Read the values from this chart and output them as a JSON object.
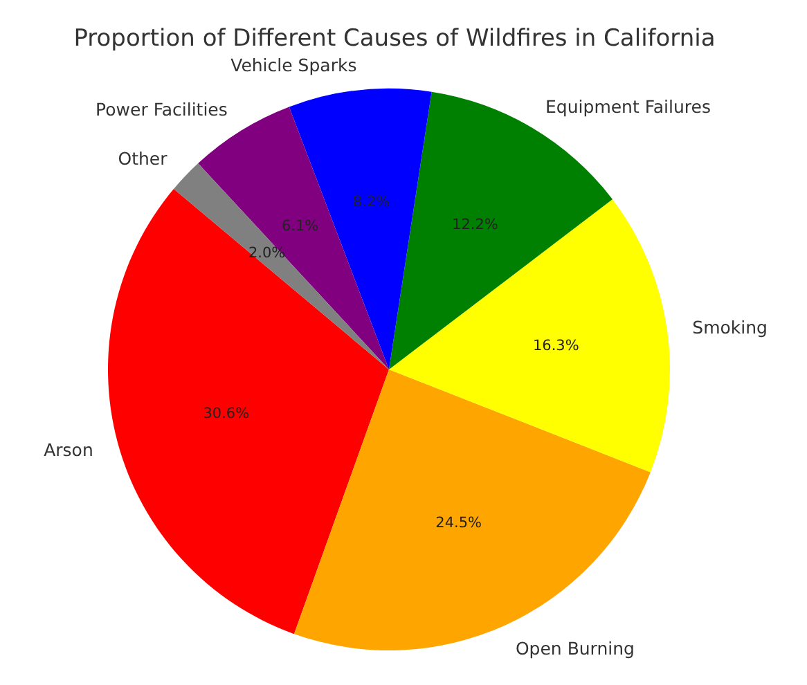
{
  "chart_data": {
    "type": "pie",
    "title": "Proportion of Different Causes of Wildfires in California",
    "categories": [
      "Arson",
      "Open Burning",
      "Smoking",
      "Equipment Failures",
      "Vehicle Sparks",
      "Power Facilities",
      "Other"
    ],
    "values": [
      30.6,
      24.5,
      16.3,
      12.2,
      8.2,
      6.1,
      2.0
    ],
    "colors": [
      "#ff0000",
      "#ffa500",
      "#ffff00",
      "#008000",
      "#0000ff",
      "#800080",
      "#808080"
    ],
    "value_labels": [
      "30.6%",
      "24.5%",
      "16.3%",
      "12.2%",
      "8.2%",
      "6.1%",
      "2.0%"
    ],
    "legend": false
  }
}
